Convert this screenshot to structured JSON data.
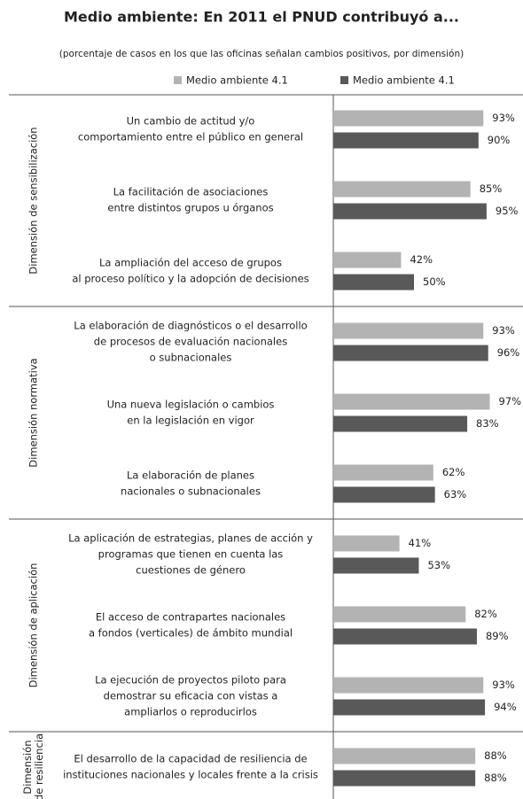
{
  "chart_data": {
    "type": "bar",
    "orientation": "horizontal",
    "title": "Medio ambiente: En 2011 el PNUD contribuyó a...",
    "subtitle": "(porcentaje de casos en los que las oficinas señalan cambios positivos, por dimensión)",
    "groups": [
      {
        "name": [
          "Dimensión de sensibilización"
        ],
        "categories": [
          [
            "Un cambio de actitud y/o",
            "comportamiento entre el público en general"
          ],
          [
            "La facilitación de asociaciones",
            "entre distintos grupos u órganos"
          ],
          [
            "La ampliación del acceso de grupos",
            "al proceso político y la adopción de decisiones"
          ]
        ]
      },
      {
        "name": [
          "Dimensión normativa"
        ],
        "categories": [
          [
            "La elaboración de diagnósticos o el desarrollo",
            "de procesos de evaluación nacionales",
            "o subnacionales"
          ],
          [
            "Una nueva legislación o cambios",
            "en la legislación en vigor"
          ],
          [
            "La elaboración de planes",
            "nacionales o subnacionales"
          ]
        ]
      },
      {
        "name": [
          "Dimensión de aplicación"
        ],
        "categories": [
          [
            "La aplicación de estrategias, planes de acción y",
            "programas que tienen en cuenta las",
            "cuestiones de género"
          ],
          [
            "El acceso de contrapartes nacionales",
            "a fondos (verticales) de ámbito mundial"
          ],
          [
            "La ejecución de proyectos piloto para",
            "demostrar su eficacia con vistas a",
            "ampliarlos o reproducirlos"
          ]
        ]
      },
      {
        "name": [
          "Dimensión",
          "de resiliencia"
        ],
        "categories": [
          [
            "El desarrollo de la capacidad de resiliencia de",
            "instituciones nacionales y locales frente a la crisis"
          ]
        ]
      }
    ],
    "series": [
      {
        "name": "Medio ambiente 4.1",
        "color": "#b3b3b3",
        "values": [
          93,
          85,
          42,
          93,
          97,
          62,
          41,
          82,
          93,
          88
        ],
        "value_labels": [
          "93%",
          "85%",
          "42%",
          "93%",
          "97%",
          "62%",
          "41%",
          "82%",
          "93%",
          "88%"
        ]
      },
      {
        "name": "Medio ambiente 4.1",
        "color": "#595959",
        "values": [
          90,
          95,
          50,
          96,
          83,
          63,
          53,
          89,
          94,
          88
        ],
        "value_labels": [
          "90%",
          "95%",
          "50%",
          "96%",
          "83%",
          "63%",
          "53%",
          "89%",
          "94%",
          "88%"
        ]
      }
    ]
  }
}
